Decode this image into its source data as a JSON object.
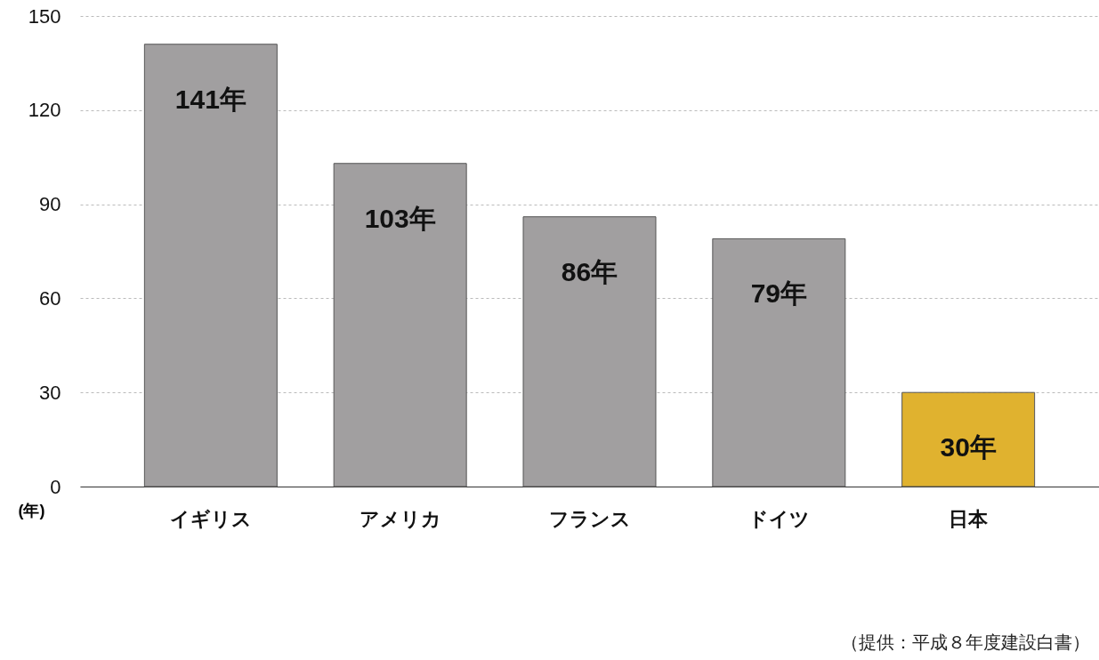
{
  "chart_data": {
    "type": "bar",
    "categories": [
      "イギリス",
      "アメリカ",
      "フランス",
      "ドイツ",
      "日本"
    ],
    "values": [
      141,
      103,
      86,
      79,
      30
    ],
    "colors": [
      "#a19fa0",
      "#a19fa0",
      "#a19fa0",
      "#a19fa0",
      "#e0b22f"
    ],
    "value_labels": [
      "141年",
      "103年",
      "86年",
      "79年",
      "30年"
    ],
    "ylabel": "(年)",
    "ylim": [
      0,
      150
    ],
    "yticks": [
      0,
      30,
      60,
      90,
      120,
      150
    ],
    "grid": "y",
    "annotations": [
      "（提供：平成８年度建設白書）"
    ]
  }
}
